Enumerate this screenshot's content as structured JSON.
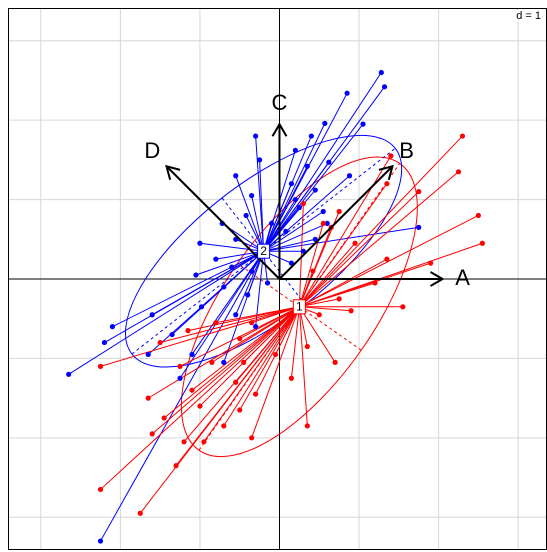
{
  "scale_label": "d = 1",
  "chart_data": {
    "type": "scatter",
    "title": "",
    "xlim": [
      -3.4,
      3.35
    ],
    "ylim": [
      -3.4,
      3.4
    ],
    "grid": true,
    "grid_step": 1,
    "center_points": [
      {
        "label": "1",
        "x": 0.25,
        "y": -0.35,
        "color": "#ff0000"
      },
      {
        "label": "2",
        "x": -0.2,
        "y": 0.35,
        "color": "#0000ff"
      }
    ],
    "ellipses": [
      {
        "group": "1",
        "color": "#ff0000",
        "cx": 0.25,
        "cy": -0.35,
        "rx": 2.2,
        "ry": 0.95,
        "angle_deg": 55
      },
      {
        "group": "2",
        "color": "#0000ff",
        "cx": -0.2,
        "cy": 0.35,
        "rx": 2.1,
        "ry": 0.85,
        "angle_deg": 38
      }
    ],
    "arrows": [
      {
        "label": "A",
        "x": 2.05,
        "y": 0.0
      },
      {
        "label": "B",
        "x": 1.42,
        "y": 1.42
      },
      {
        "label": "C",
        "x": 0.0,
        "y": 1.95
      },
      {
        "label": "D",
        "x": -1.42,
        "y": 1.42
      }
    ],
    "series": [
      {
        "group": "2",
        "color": "#0000ff",
        "points": [
          [
            1.28,
            2.6
          ],
          [
            1.32,
            2.42
          ],
          [
            0.85,
            2.34
          ],
          [
            1.05,
            1.95
          ],
          [
            0.57,
            1.96
          ],
          [
            0.4,
            1.8
          ],
          [
            -0.3,
            1.8
          ],
          [
            0.2,
            1.62
          ],
          [
            0.62,
            1.47
          ],
          [
            0.88,
            1.3
          ],
          [
            -0.25,
            1.5
          ],
          [
            0.35,
            1.42
          ],
          [
            -0.55,
            1.3
          ],
          [
            0.15,
            1.2
          ],
          [
            0.45,
            1.12
          ],
          [
            -0.35,
            1.05
          ],
          [
            0.55,
            0.85
          ],
          [
            0.25,
            0.9
          ],
          [
            1.75,
            0.65
          ],
          [
            -0.42,
            0.8
          ],
          [
            0.6,
            0.7
          ],
          [
            -0.72,
            0.7
          ],
          [
            0.08,
            0.6
          ],
          [
            -0.55,
            0.5
          ],
          [
            -1.0,
            0.45
          ],
          [
            0.3,
            0.35
          ],
          [
            -0.8,
            0.25
          ],
          [
            -0.6,
            0.15
          ],
          [
            -0.35,
            0.1
          ],
          [
            -1.05,
            0.05
          ],
          [
            -0.7,
            -0.1
          ],
          [
            -0.4,
            -0.2
          ],
          [
            -0.98,
            -0.35
          ],
          [
            -0.55,
            -0.45
          ],
          [
            -1.6,
            -0.45
          ],
          [
            -2.1,
            -0.6
          ],
          [
            -1.35,
            -0.7
          ],
          [
            -0.3,
            -0.6
          ],
          [
            -1.1,
            -0.95
          ],
          [
            -1.65,
            -0.95
          ],
          [
            -2.2,
            -0.8
          ],
          [
            -2.65,
            -1.2
          ],
          [
            -1.25,
            -1.25
          ],
          [
            -0.7,
            -1.05
          ],
          [
            -2.25,
            -3.3
          ],
          [
            0.2,
            1.0
          ],
          [
            -0.1,
            0.7
          ],
          [
            0.45,
            0.5
          ],
          [
            -0.15,
            -0.05
          ],
          [
            0.15,
            0.2
          ]
        ]
      },
      {
        "group": "1",
        "color": "#ff0000",
        "points": [
          [
            2.3,
            1.8
          ],
          [
            2.25,
            1.35
          ],
          [
            1.4,
            1.55
          ],
          [
            1.35,
            1.2
          ],
          [
            1.75,
            1.1
          ],
          [
            2.5,
            0.8
          ],
          [
            1.9,
            0.2
          ],
          [
            2.55,
            0.45
          ],
          [
            1.35,
            0.25
          ],
          [
            1.55,
            -0.35
          ],
          [
            0.95,
            0.45
          ],
          [
            1.2,
            -0.05
          ],
          [
            0.75,
            -0.25
          ],
          [
            0.55,
            0.7
          ],
          [
            0.75,
            0.85
          ],
          [
            0.3,
            0.95
          ],
          [
            0.65,
            0.65
          ],
          [
            0.42,
            0.1
          ],
          [
            0.9,
            -0.4
          ],
          [
            0.5,
            -0.45
          ],
          [
            0.12,
            -0.45
          ],
          [
            0.7,
            -1.05
          ],
          [
            0.35,
            -0.85
          ],
          [
            -0.35,
            -0.55
          ],
          [
            -0.8,
            -0.55
          ],
          [
            -1.15,
            -0.65
          ],
          [
            -0.5,
            -0.75
          ],
          [
            -1.5,
            -0.8
          ],
          [
            -0.05,
            -0.95
          ],
          [
            -0.45,
            -1.05
          ],
          [
            -0.85,
            -1.05
          ],
          [
            -1.25,
            -1.1
          ],
          [
            -2.25,
            -1.1
          ],
          [
            0.15,
            -1.25
          ],
          [
            -0.55,
            -1.3
          ],
          [
            -1.1,
            -1.4
          ],
          [
            -1.65,
            -1.5
          ],
          [
            -0.3,
            -1.45
          ],
          [
            -1.0,
            -1.6
          ],
          [
            -0.5,
            -1.65
          ],
          [
            -1.45,
            -1.75
          ],
          [
            -1.6,
            -1.95
          ],
          [
            -0.95,
            -2.05
          ],
          [
            -0.7,
            -1.85
          ],
          [
            -1.2,
            -2.05
          ],
          [
            -0.35,
            -2.0
          ],
          [
            -1.3,
            -2.35
          ],
          [
            -2.25,
            -2.65
          ],
          [
            -1.75,
            -2.95
          ],
          [
            0.35,
            -1.85
          ]
        ]
      }
    ]
  }
}
